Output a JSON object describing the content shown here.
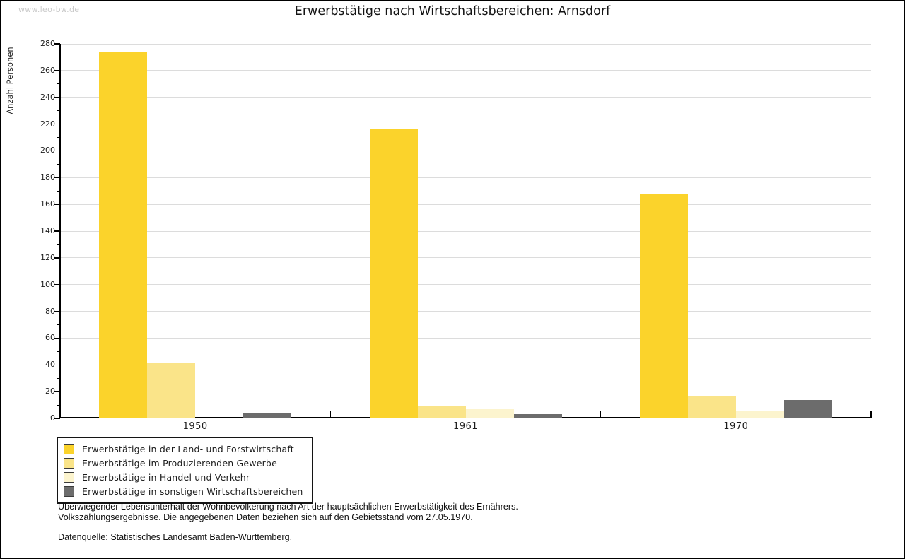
{
  "watermark": "www.leo-bw.de",
  "title": "Erwerbstätige nach Wirtschaftsbereichen: Arnsdorf",
  "chart_data": {
    "type": "bar",
    "title": "Erwerbstätige nach Wirtschaftsbereichen: Arnsdorf",
    "xlabel": "",
    "ylabel": "Anzahl Personen",
    "ylim": [
      0,
      280
    ],
    "ytick_step": 20,
    "yminor_step": 10,
    "grid": true,
    "legend_position": "bottom-left",
    "categories": [
      "1950",
      "1961",
      "1970"
    ],
    "series": [
      {
        "name": "Erwerbstätige in der Land- und Forstwirtschaft",
        "color": "#fbd32b",
        "values": [
          274,
          216,
          168
        ]
      },
      {
        "name": "Erwerbstätige im Produzierenden Gewerbe",
        "color": "#fae489",
        "values": [
          42,
          9,
          17
        ]
      },
      {
        "name": "Erwerbstätige in Handel und Verkehr",
        "color": "#fcf4ce",
        "values": [
          0,
          7,
          6
        ]
      },
      {
        "name": "Erwerbstätige in sonstigen Wirtschaftsbereichen",
        "color": "#6c6c6c",
        "values": [
          4,
          3,
          14
        ]
      }
    ]
  },
  "footnotes": {
    "line1": "Überwiegender Lebensunterhalt der Wohnbevölkerung nach Art der hauptsächlichen Erwerbstätigkeit des Ernährers.",
    "line2": "Volkszählungsergebnisse. Die angegebenen Daten beziehen sich auf den Gebietsstand vom 27.05.1970.",
    "source": "Datenquelle: Statistisches Landesamt Baden-Württemberg."
  }
}
